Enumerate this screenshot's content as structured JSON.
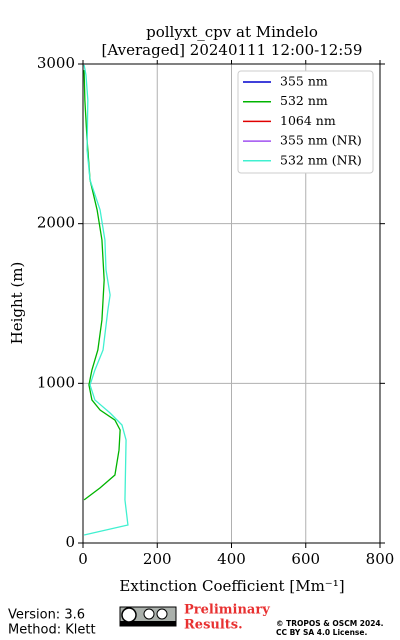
{
  "chart_data": {
    "type": "line",
    "title": "pollyxt_cpv at Mindelo",
    "subtitle": "[Averaged] 20240111 12:00-12:59",
    "x_label": "Extinction Coefficient [Mm⁻¹]",
    "y_label": "Height (m)",
    "xlim": [
      0,
      800
    ],
    "xticks": [
      0,
      200,
      400,
      600,
      800
    ],
    "ylim": [
      0,
      3000
    ],
    "yticks": [
      0,
      1000,
      2000,
      3000
    ],
    "grid": true,
    "legend": "upper right",
    "series": [
      {
        "name": "355 nm",
        "color": "#0000cd",
        "x": [],
        "y": []
      },
      {
        "name": "532 nm",
        "color": "#00b400",
        "x": [
          3,
          46,
          86,
          97,
          100,
          86,
          46,
          24,
          16,
          24,
          40,
          51,
          57,
          51,
          38,
          19,
          11,
          5,
          3
        ],
        "y": [
          270,
          345,
          426,
          582,
          708,
          770,
          833,
          896,
          990,
          1083,
          1209,
          1397,
          1647,
          1898,
          2086,
          2273,
          2524,
          2775,
          2962
        ]
      },
      {
        "name": "1064 nm",
        "color": "#e00000",
        "x": [],
        "y": []
      },
      {
        "name": "355 nm (NR)",
        "color": "#a050f0",
        "x": [],
        "y": []
      },
      {
        "name": "532 nm (NR)",
        "color": "#40f0d0",
        "x": [
          3,
          121,
          113,
          116,
          105,
          73,
          32,
          19,
          32,
          54,
          67,
          73,
          62,
          59,
          46,
          19,
          11,
          13,
          8,
          3
        ],
        "y": [
          50,
          113,
          270,
          645,
          739,
          814,
          896,
          990,
          1083,
          1209,
          1459,
          1553,
          1710,
          1898,
          2086,
          2273,
          2461,
          2775,
          2931,
          2994
        ]
      }
    ]
  },
  "footer": {
    "version": "Version: 3.6",
    "method": "Method: Klett",
    "preliminary": "Preliminary",
    "results": "Results.",
    "copyright": "© TROPOS & OSCM 2024.",
    "license": "CC BY SA 4.0 License."
  }
}
